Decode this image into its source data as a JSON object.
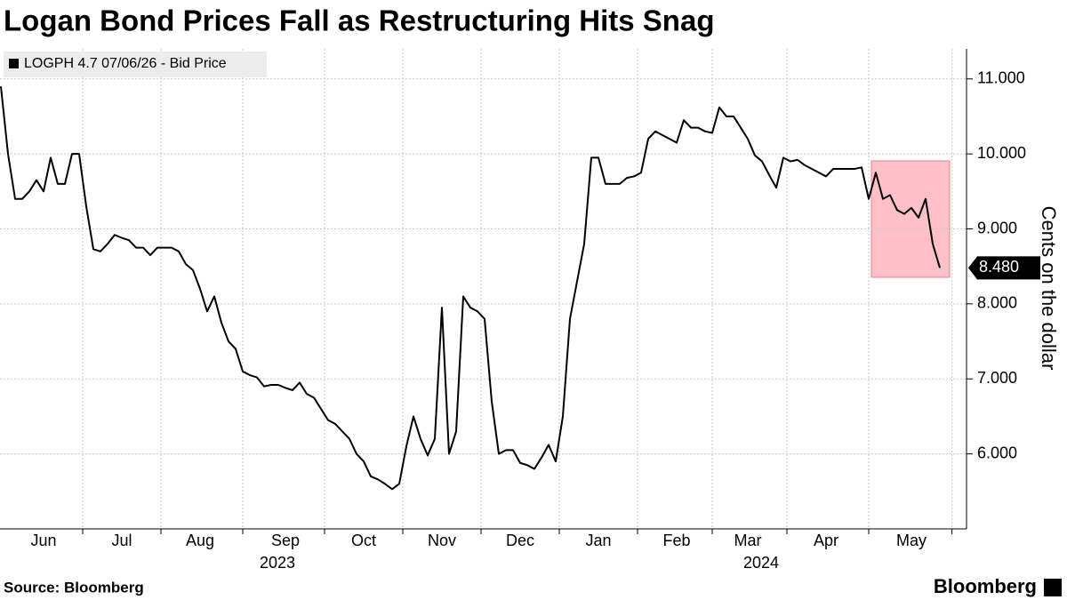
{
  "chart_data": {
    "type": "line",
    "title": "Logan Bond Prices Fall as Restructuring Hits Snag",
    "y_axis_label": "Cents on the dollar",
    "source": "Source: Bloomberg",
    "brand": "Bloomberg",
    "year_labels": [
      "2023",
      "2024"
    ],
    "categories": [
      null,
      null,
      null,
      null,
      null,
      null,
      "Jun",
      null,
      null,
      null,
      null,
      null,
      null,
      null,
      null,
      null,
      null,
      "Jul",
      null,
      null,
      null,
      null,
      null,
      null,
      null,
      null,
      null,
      null,
      "Aug",
      null,
      null,
      null,
      null,
      null,
      null,
      null,
      null,
      null,
      null,
      null,
      "Sep",
      null,
      null,
      null,
      null,
      null,
      null,
      null,
      null,
      null,
      null,
      "Oct",
      null,
      null,
      null,
      null,
      null,
      null,
      null,
      null,
      null,
      null,
      "Nov",
      null,
      null,
      null,
      null,
      null,
      null,
      null,
      null,
      null,
      null,
      "Dec",
      null,
      null,
      null,
      null,
      null,
      null,
      null,
      null,
      null,
      null,
      "Jan",
      null,
      null,
      null,
      null,
      null,
      null,
      null,
      null,
      null,
      null,
      "Feb",
      null,
      null,
      null,
      null,
      null,
      null,
      null,
      null,
      null,
      "Mar",
      null,
      null,
      null,
      null,
      null,
      null,
      null,
      null,
      null,
      null,
      "Apr",
      null,
      null,
      null,
      null,
      null,
      null,
      null,
      null,
      null,
      null,
      null,
      "May",
      null,
      null,
      null,
      null
    ],
    "series": [
      {
        "name": "LOGPH 4.7 07/06/26 - Bid Price",
        "color": "#000000",
        "values": [
          10.9,
          10.0,
          9.4,
          9.4,
          9.5,
          9.65,
          9.5,
          9.95,
          9.6,
          9.6,
          10.0,
          10.0,
          9.3,
          8.73,
          8.7,
          8.8,
          8.92,
          8.88,
          8.85,
          8.75,
          8.75,
          8.65,
          8.75,
          8.75,
          8.75,
          8.7,
          8.53,
          8.45,
          8.2,
          7.9,
          8.1,
          7.75,
          7.5,
          7.4,
          7.1,
          7.05,
          7.02,
          6.9,
          6.92,
          6.92,
          6.88,
          6.85,
          6.95,
          6.8,
          6.75,
          6.6,
          6.45,
          6.4,
          6.3,
          6.2,
          6.0,
          5.9,
          5.7,
          5.66,
          5.6,
          5.53,
          5.6,
          6.1,
          6.5,
          6.2,
          5.98,
          6.2,
          7.95,
          6.0,
          6.3,
          8.1,
          7.95,
          7.9,
          7.8,
          6.7,
          6.0,
          6.05,
          6.05,
          5.88,
          5.85,
          5.8,
          5.95,
          6.12,
          5.9,
          6.5,
          7.8,
          8.3,
          8.8,
          9.95,
          9.95,
          9.6,
          9.6,
          9.6,
          9.68,
          9.7,
          9.75,
          10.2,
          10.3,
          10.25,
          10.2,
          10.15,
          10.45,
          10.35,
          10.35,
          10.3,
          10.28,
          10.62,
          10.5,
          10.5,
          10.35,
          10.2,
          9.98,
          9.9,
          9.72,
          9.55,
          9.95,
          9.9,
          9.92,
          9.85,
          9.8,
          9.75,
          9.7,
          9.8,
          9.8,
          9.8,
          9.8,
          9.82,
          9.4,
          9.75,
          9.4,
          9.45,
          9.25,
          9.2,
          9.28,
          9.15,
          9.4,
          8.8,
          8.48
        ]
      }
    ],
    "end_label": {
      "value": 8.48,
      "label": "8.480"
    },
    "ylim": [
      5,
      11.4
    ],
    "yticks": [
      {
        "value": 6,
        "label": "6.000"
      },
      {
        "value": 7,
        "label": "7.000"
      },
      {
        "value": 8,
        "label": "8.000"
      },
      {
        "value": 9,
        "label": "9.000"
      },
      {
        "value": 10,
        "label": "10.000"
      },
      {
        "value": 11,
        "label": "11.000"
      }
    ],
    "grid": true
  }
}
